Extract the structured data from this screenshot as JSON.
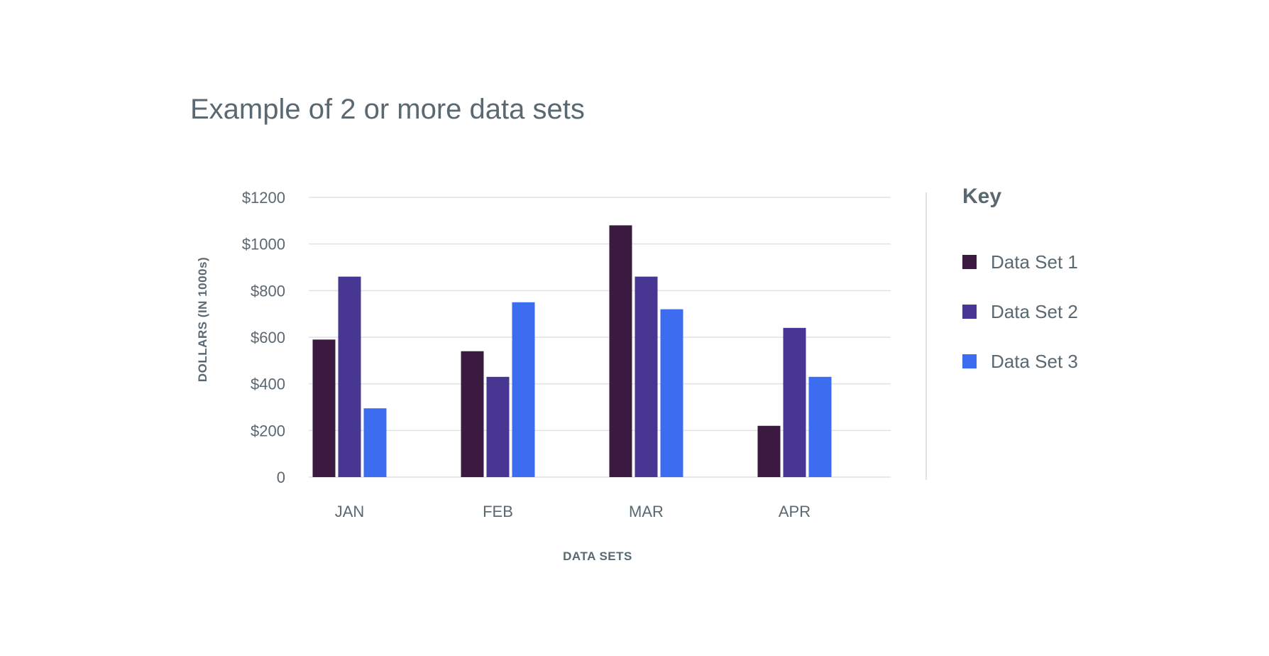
{
  "title": "Example of 2 or more data sets",
  "chart_data": {
    "type": "bar",
    "title": "Example of 2 or more data sets",
    "xlabel": "DATA SETS",
    "ylabel": "DOLLARS (IN 1000s)",
    "categories": [
      "JAN",
      "FEB",
      "MAR",
      "APR"
    ],
    "y_ticks": [
      "0",
      "$200",
      "$400",
      "$600",
      "$800",
      "$1000",
      "$1200"
    ],
    "ylim": [
      0,
      1200
    ],
    "grid": true,
    "legend_title": "Key",
    "legend_position": "right",
    "series": [
      {
        "name": "Data Set 1",
        "color": "#3b1a40",
        "values": [
          590,
          540,
          1080,
          220
        ]
      },
      {
        "name": "Data Set 2",
        "color": "#473793",
        "values": [
          860,
          430,
          860,
          640
        ]
      },
      {
        "name": "Data Set 3",
        "color": "#3c6df0",
        "values": [
          295,
          750,
          720,
          430
        ]
      }
    ]
  }
}
